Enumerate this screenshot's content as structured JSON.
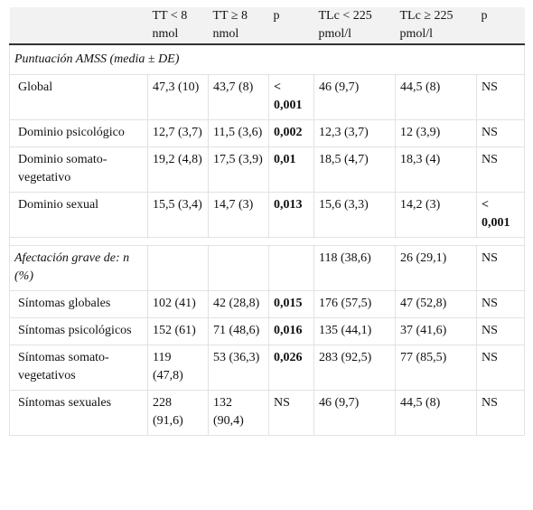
{
  "table": {
    "header": [
      "TT < 8 nmol",
      "TT ≥ 8 nmol",
      "p",
      "TLc < 225 pmol/l",
      "TLc ≥ 225 pmol/l",
      "p"
    ],
    "section_title": "Puntuación AMSS (media ± DE)",
    "rows": [
      {
        "label": "Global",
        "cells": [
          "47,3 (10)",
          "43,7 (8)",
          "< 0,001",
          "46 (9,7)",
          "44,5 (8)",
          "NS"
        ]
      },
      {
        "label": "Dominio psicológico",
        "cells": [
          "12,7 (3,7)",
          "11,5 (3,6)",
          "0,002",
          "12,3 (3,7)",
          "12 (3,9)",
          "NS"
        ]
      },
      {
        "label": "Dominio somato-vegetativo",
        "cells": [
          "19,2 (4,8)",
          "17,5 (3,9)",
          "0,01",
          "18,5 (4,7)",
          "18,3 (4)",
          "NS"
        ]
      },
      {
        "label": "Dominio sexual",
        "cells": [
          "15,5 (3,4)",
          "14,7 (3)",
          "0,013",
          "15,6 (3,3)",
          "14,2 (3)",
          "< 0,001"
        ]
      }
    ],
    "subgroup": {
      "label": "Afectación grave de: n (%)",
      "cells": [
        null,
        null,
        null,
        "118 (38,6)",
        "26 (29,1)",
        "NS"
      ]
    },
    "subgroup_rows": [
      {
        "label": "Síntomas globales",
        "cells": [
          "102 (41)",
          "42 (28,8)",
          "0,015",
          "176 (57,5)",
          "47 (52,8)",
          "NS"
        ]
      },
      {
        "label": "Síntomas psicológicos",
        "cells": [
          "152 (61)",
          "71 (48,6)",
          "0,016",
          "135 (44,1)",
          "37 (41,6)",
          "NS"
        ]
      },
      {
        "label": "Síntomas somato-vegetativos",
        "cells": [
          "119 (47,8)",
          "53 (36,3)",
          "0,026",
          "283 (92,5)",
          "77 (85,5)",
          "NS"
        ]
      },
      {
        "label": "Síntomas sexuales",
        "cells": [
          "228 (91,6)",
          "132 (90,4)",
          "NS",
          "46 (9,7)",
          "44,5 (8)",
          "NS"
        ]
      }
    ]
  }
}
